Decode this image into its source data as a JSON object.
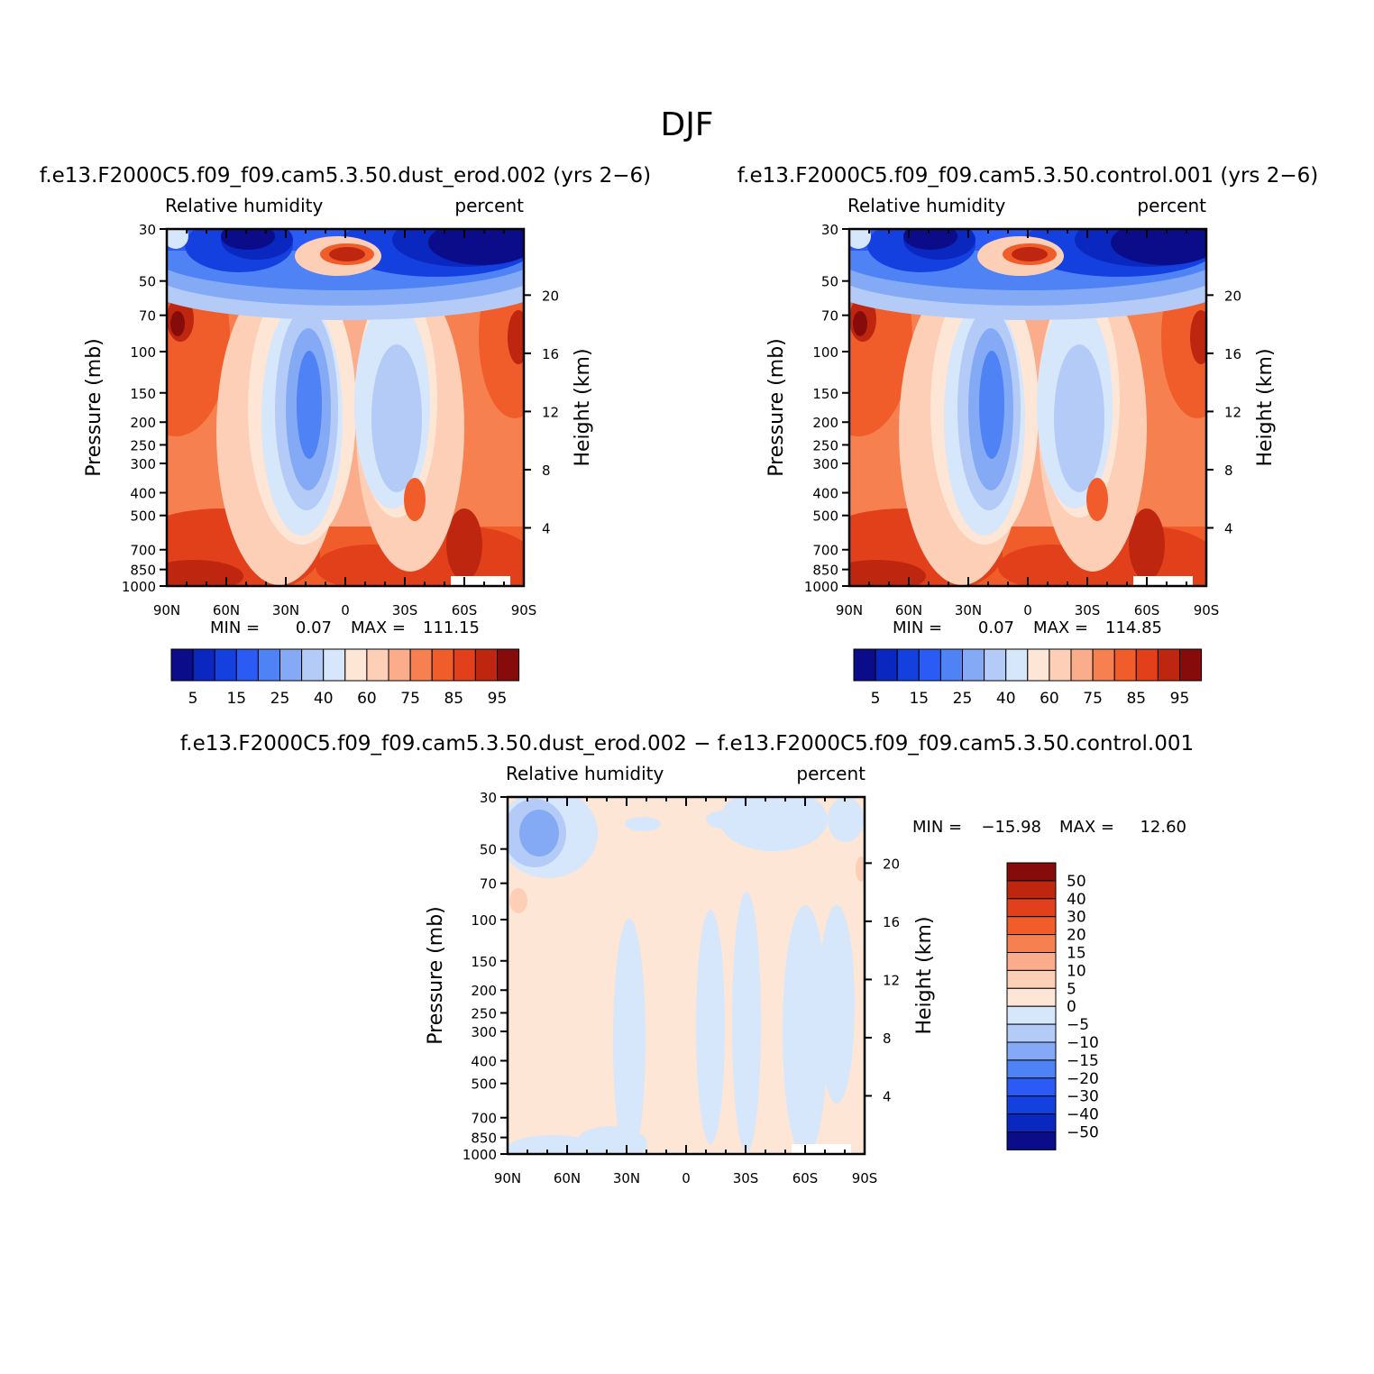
{
  "page_title": "DJF",
  "chart_data": [
    {
      "type": "heatmap",
      "id": "dust",
      "title": "f.e13.F2000C5.f09_f09.cam5.3.50.dust_erod.002 (yrs 2−6)",
      "left_string": "Relative humidity",
      "right_string": "percent",
      "xlabel": "",
      "ylabel": "Pressure (mb)",
      "y2label": "Height (km)",
      "x_ticks": [
        "90N",
        "60N",
        "30N",
        "0",
        "30S",
        "60S",
        "90S"
      ],
      "x_values": [
        90,
        60,
        30,
        0,
        -30,
        -60,
        -90
      ],
      "y_ticks": [
        "30",
        "50",
        "70",
        "100",
        "150",
        "200",
        "250",
        "300",
        "400",
        "500",
        "700",
        "850",
        "1000"
      ],
      "y_values": [
        30,
        50,
        70,
        100,
        150,
        200,
        250,
        300,
        400,
        500,
        700,
        850,
        1000
      ],
      "ylim": [
        30,
        1000
      ],
      "y2_ticks": [
        "20",
        "16",
        "12",
        "8",
        "4"
      ],
      "min_label": "MIN =",
      "min_value": "0.07",
      "max_label": "MAX =",
      "max_value": "111.15",
      "colorbar_labels": [
        "5",
        "15",
        "25",
        "40",
        "60",
        "75",
        "85",
        "95"
      ]
    },
    {
      "type": "heatmap",
      "id": "control",
      "title": "f.e13.F2000C5.f09_f09.cam5.3.50.control.001 (yrs 2−6)",
      "left_string": "Relative humidity",
      "right_string": "percent",
      "xlabel": "",
      "ylabel": "Pressure (mb)",
      "y2label": "Height (km)",
      "x_ticks": [
        "90N",
        "60N",
        "30N",
        "0",
        "30S",
        "60S",
        "90S"
      ],
      "x_values": [
        90,
        60,
        30,
        0,
        -30,
        -60,
        -90
      ],
      "y_ticks": [
        "30",
        "50",
        "70",
        "100",
        "150",
        "200",
        "250",
        "300",
        "400",
        "500",
        "700",
        "850",
        "1000"
      ],
      "y_values": [
        30,
        50,
        70,
        100,
        150,
        200,
        250,
        300,
        400,
        500,
        700,
        850,
        1000
      ],
      "ylim": [
        30,
        1000
      ],
      "y2_ticks": [
        "20",
        "16",
        "12",
        "8",
        "4"
      ],
      "min_label": "MIN =",
      "min_value": "0.07",
      "max_label": "MAX =",
      "max_value": "114.85",
      "colorbar_labels": [
        "5",
        "15",
        "25",
        "40",
        "60",
        "75",
        "85",
        "95"
      ]
    },
    {
      "type": "heatmap",
      "id": "diff",
      "title": "f.e13.F2000C5.f09_f09.cam5.3.50.dust_erod.002 − f.e13.F2000C5.f09_f09.cam5.3.50.control.001",
      "left_string": "Relative humidity",
      "right_string": "percent",
      "xlabel": "",
      "ylabel": "Pressure (mb)",
      "y2label": "Height (km)",
      "x_ticks": [
        "90N",
        "60N",
        "30N",
        "0",
        "30S",
        "60S",
        "90S"
      ],
      "x_values": [
        90,
        60,
        30,
        0,
        -30,
        -60,
        -90
      ],
      "y_ticks": [
        "30",
        "50",
        "70",
        "100",
        "150",
        "200",
        "250",
        "300",
        "400",
        "500",
        "700",
        "850",
        "1000"
      ],
      "y_values": [
        30,
        50,
        70,
        100,
        150,
        200,
        250,
        300,
        400,
        500,
        700,
        850,
        1000
      ],
      "ylim": [
        30,
        1000
      ],
      "y2_ticks": [
        "20",
        "16",
        "12",
        "8",
        "4"
      ],
      "min_label": "MIN =",
      "min_value": "−15.98",
      "max_label": "MAX =",
      "max_value": "12.60",
      "colorbar_labels": [
        "50",
        "40",
        "30",
        "20",
        "15",
        "10",
        "5",
        "0",
        "−5",
        "−10",
        "−15",
        "−20",
        "−30",
        "−40",
        "−50"
      ]
    }
  ],
  "palette_abs": [
    "#0a0c8a",
    "#0a27c0",
    "#1540e0",
    "#2a5cf5",
    "#4f82f5",
    "#85aaf5",
    "#b4cbf7",
    "#d6e6fb",
    "#fde6d5",
    "#fccfb6",
    "#fbac8b",
    "#f6804f",
    "#f05d2a",
    "#e2401a",
    "#bf2610",
    "#860c0c"
  ],
  "palette_diff": [
    "#0a0c8a",
    "#0a27c0",
    "#1540e0",
    "#2a5cf5",
    "#4f82f5",
    "#85aaf5",
    "#b4cbf7",
    "#d6e6fb",
    "#fde6d5",
    "#fccfb6",
    "#fbac8b",
    "#f6804f",
    "#f05d2a",
    "#e2401a",
    "#bf2610",
    "#860c0c"
  ]
}
